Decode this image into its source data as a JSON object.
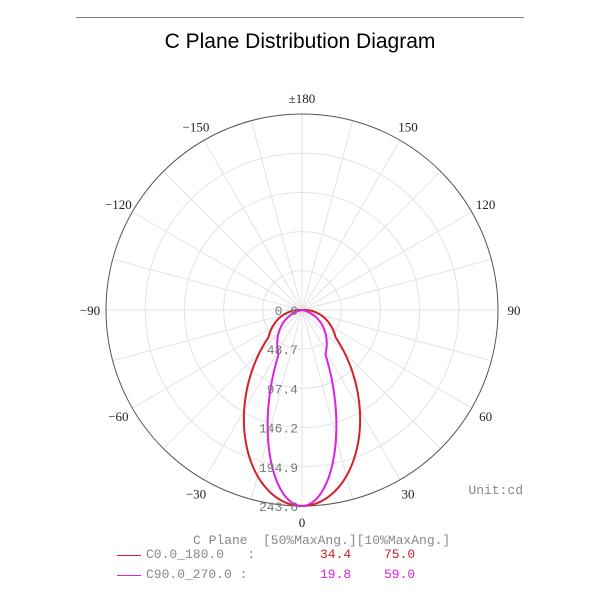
{
  "chart_data": {
    "type": "polar",
    "title": "C Plane Distribution Diagram",
    "angle_labels": [
      {
        "angle": 0,
        "label": "0"
      },
      {
        "angle": 30,
        "label": "30"
      },
      {
        "angle": -30,
        "label": "−30"
      },
      {
        "angle": 60,
        "label": "60"
      },
      {
        "angle": -60,
        "label": "−60"
      },
      {
        "angle": 90,
        "label": "90"
      },
      {
        "angle": -90,
        "label": "−90"
      },
      {
        "angle": 120,
        "label": "120"
      },
      {
        "angle": -120,
        "label": "−120"
      },
      {
        "angle": 150,
        "label": "150"
      },
      {
        "angle": -150,
        "label": "−150"
      },
      {
        "angle": 180,
        "label": "±180"
      }
    ],
    "radial_ticks": [
      "0.0",
      "48.7",
      "97.4",
      "146.2",
      "194.9",
      "243.6"
    ],
    "radial_max": 243.6,
    "unit_label": "Unit:cd",
    "grid": true,
    "series": [
      {
        "name": "C0.0_180.0",
        "color": "#d4202a",
        "half_width_50": 34.4,
        "half_width_10": 75.0,
        "peak": 243.6
      },
      {
        "name": "C90.0_270.0",
        "color": "#e020e0",
        "half_width_50": 19.8,
        "half_width_10": 59.0,
        "peak": 243.6
      }
    ],
    "legend": {
      "header_plane": "C Plane",
      "header_cols": "[50%MaxAng.][10%MaxAng.]",
      "separator": ":"
    }
  }
}
